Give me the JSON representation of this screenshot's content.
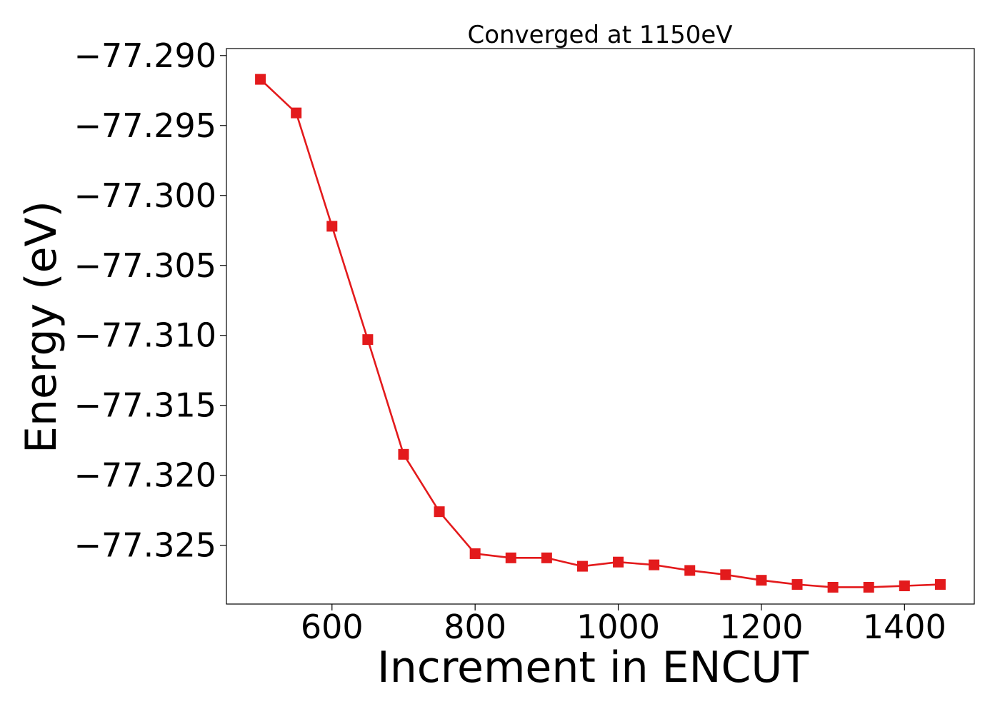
{
  "chart_data": {
    "type": "line",
    "title": "Converged at 1150eV",
    "xlabel": "Increment in ENCUT",
    "ylabel": "Energy (eV)",
    "xlim": [
      452.5,
      1497.5
    ],
    "ylim": [
      -77.3292,
      -77.2895
    ],
    "x_ticks": [
      600,
      800,
      1000,
      1200,
      1400
    ],
    "x_tick_labels": [
      "600",
      "800",
      "1000",
      "1200",
      "1400"
    ],
    "y_ticks": [
      -77.29,
      -77.295,
      -77.3,
      -77.305,
      -77.31,
      -77.315,
      -77.32,
      -77.325
    ],
    "y_tick_labels": [
      "−77.290",
      "−77.295",
      "−77.300",
      "−77.305",
      "−77.310",
      "−77.315",
      "−77.320",
      "−77.325"
    ],
    "grid": false,
    "legend": "none",
    "marker": "square",
    "color": "#e31a1c",
    "series": [
      {
        "x": [
          500,
          550,
          600,
          650,
          700,
          750,
          800,
          850,
          900,
          950,
          1000,
          1050,
          1100,
          1150,
          1200,
          1250,
          1300,
          1350,
          1400,
          1450
        ],
        "values": [
          -77.2917,
          -77.2941,
          -77.3022,
          -77.3103,
          -77.3185,
          -77.3226,
          -77.3256,
          -77.3259,
          -77.3259,
          -77.3265,
          -77.3262,
          -77.3264,
          -77.3268,
          -77.3271,
          -77.3275,
          -77.3278,
          -77.328,
          -77.328,
          -77.3279,
          -77.3278
        ]
      }
    ]
  }
}
